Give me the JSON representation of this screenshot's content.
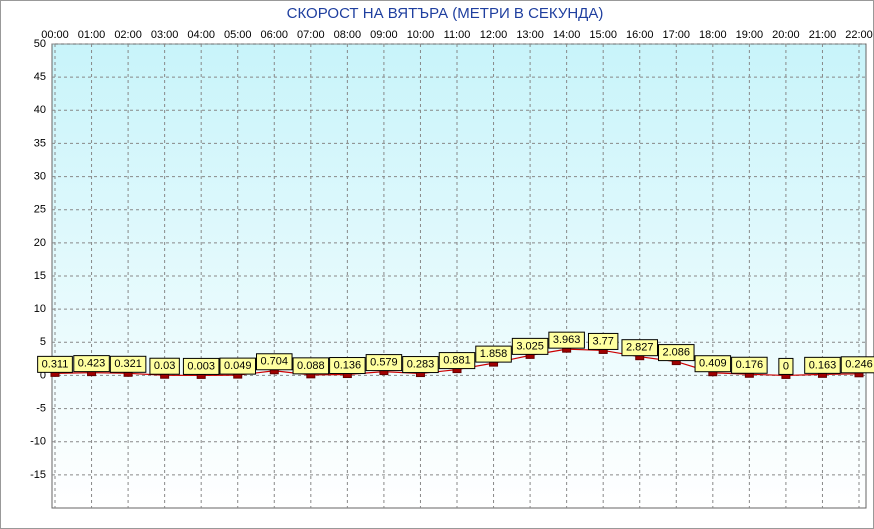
{
  "chart_data": {
    "type": "line",
    "title": "СКОРОСТ НА ВЯТЪРА (МЕТРИ В СЕКУНДА)",
    "categories": [
      "00:00",
      "01:00",
      "02:00",
      "03:00",
      "04:00",
      "05:00",
      "06:00",
      "07:00",
      "08:00",
      "09:00",
      "10:00",
      "11:00",
      "12:00",
      "13:00",
      "14:00",
      "15:00",
      "16:00",
      "17:00",
      "18:00",
      "19:00",
      "20:00",
      "21:00",
      "22:00"
    ],
    "series": [
      {
        "color": "#cc0000",
        "values": [
          0.311,
          0.423,
          0.321,
          0.03,
          0.003,
          0.049,
          0.704,
          0.088,
          0.136,
          0.579,
          0.283,
          0.881,
          1.858,
          3.025,
          3.963,
          3.77,
          2.827,
          2.086,
          0.409,
          0.176,
          0,
          0.163,
          0.246
        ]
      }
    ],
    "ylim": [
      -20,
      50
    ],
    "yticks": [
      50,
      45,
      40,
      35,
      30,
      25,
      20,
      15,
      10,
      5,
      0,
      -5,
      -10,
      -15
    ],
    "grid": true
  }
}
